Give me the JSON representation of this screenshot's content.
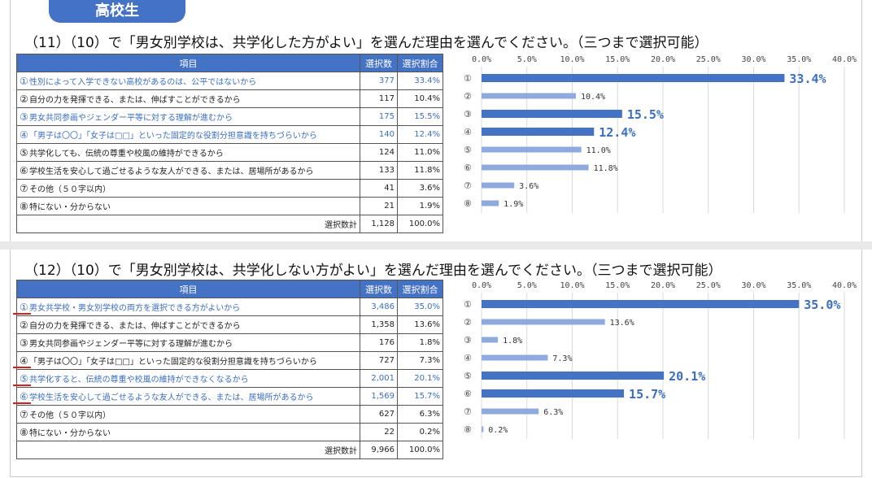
{
  "badge": "高校生",
  "questions": [
    {
      "title": "（11）（10）で「男女別学校は、共学化した方がよい」を選んだ理由を選んでください。（三つまで選択可能）",
      "headers": {
        "item": "項目",
        "count": "選択数",
        "ratio": "選択割合"
      },
      "rows": [
        {
          "no": "①",
          "label": "性別によって入学できない高校があるのは、公平ではないから",
          "count": "377",
          "ratio": "33.4%",
          "highlight": true
        },
        {
          "no": "②",
          "label": "自分の力を発揮できる、または、伸ばすことができるから",
          "count": "117",
          "ratio": "10.4%",
          "highlight": false
        },
        {
          "no": "③",
          "label": "男女共同参画やジェンダー平等に対する理解が進むから",
          "count": "175",
          "ratio": "15.5%",
          "highlight": true
        },
        {
          "no": "④",
          "label": "「男子は〇〇」「女子は□□」といった固定的な役割分担意識を持ちづらいから",
          "count": "140",
          "ratio": "12.4%",
          "highlight": true
        },
        {
          "no": "⑤",
          "label": "共学化しても、伝統の尊重や校風の維持ができるから",
          "count": "124",
          "ratio": "11.0%",
          "highlight": false
        },
        {
          "no": "⑥",
          "label": "学校生活を安心して過ごせるような友人ができる、または、居場所があるから",
          "count": "133",
          "ratio": "11.8%",
          "highlight": false
        },
        {
          "no": "⑦",
          "label": "その他（５０字以内）",
          "count": "41",
          "ratio": "3.6%",
          "highlight": false
        },
        {
          "no": "⑧",
          "label": "特にない・分からない",
          "count": "21",
          "ratio": "1.9%",
          "highlight": false
        }
      ],
      "total": {
        "label": "選択数計",
        "count": "1,128",
        "ratio": "100.0%"
      }
    },
    {
      "title": "（12）（10）で「男女別学校は、共学化しない方がよい」を選んだ理由を選んでください。（三つまで選択可能）",
      "headers": {
        "item": "項目",
        "count": "選択数",
        "ratio": "選択割合"
      },
      "rows": [
        {
          "no": "①",
          "label": "男女共学校・男女別学校の両方を選択できる方がよいから",
          "count": "3,486",
          "ratio": "35.0%",
          "highlight": true
        },
        {
          "no": "②",
          "label": "自分の力を発揮できる、または、伸ばすことができるから",
          "count": "1,358",
          "ratio": "13.6%",
          "highlight": false
        },
        {
          "no": "③",
          "label": "男女共同参画やジェンダー平等に対する理解が進むから",
          "count": "176",
          "ratio": "1.8%",
          "highlight": false
        },
        {
          "no": "④",
          "label": "「男子は〇〇」「女子は□□」といった固定的な役割分担意識を持ちづらいから",
          "count": "727",
          "ratio": "7.3%",
          "highlight": false
        },
        {
          "no": "⑤",
          "label": "共学化すると、伝統の尊重や校風の維持ができなくなるから",
          "count": "2,001",
          "ratio": "20.1%",
          "highlight": true
        },
        {
          "no": "⑥",
          "label": "学校生活を安心して過ごせるような友人ができる、または、居場所があるから",
          "count": "1,569",
          "ratio": "15.7%",
          "highlight": true
        },
        {
          "no": "⑦",
          "label": "その他（５０字以内）",
          "count": "627",
          "ratio": "6.3%",
          "highlight": false
        },
        {
          "no": "⑧",
          "label": "特にない・分からない",
          "count": "22",
          "ratio": "0.2%",
          "highlight": false
        }
      ],
      "total": {
        "label": "選択数計",
        "count": "9,966",
        "ratio": "100.0%"
      }
    }
  ],
  "colors": {
    "accent": "#4472c4",
    "bar_light": "#8faadc",
    "highlight_text": "#3b6ec0",
    "red_mark": "#d42020"
  },
  "chart_data": [
    {
      "type": "bar",
      "orientation": "horizontal",
      "categories": [
        "①",
        "②",
        "③",
        "④",
        "⑤",
        "⑥",
        "⑦",
        "⑧"
      ],
      "values": [
        33.4,
        10.4,
        15.5,
        12.4,
        11.0,
        11.8,
        3.6,
        1.9
      ],
      "value_labels": [
        "33.4%",
        "10.4%",
        "15.5%",
        "12.4%",
        "11.0%",
        "11.8%",
        "3.6%",
        "1.9%"
      ],
      "highlight": [
        true,
        false,
        true,
        true,
        false,
        false,
        false,
        false
      ],
      "xlim": [
        0,
        40
      ],
      "ticks": [
        "0.0%",
        "5.0%",
        "10.0%",
        "15.0%",
        "20.0%",
        "25.0%",
        "30.0%",
        "35.0%",
        "40.0%"
      ],
      "grid": true
    },
    {
      "type": "bar",
      "orientation": "horizontal",
      "categories": [
        "①",
        "②",
        "③",
        "④",
        "⑤",
        "⑥",
        "⑦",
        "⑧"
      ],
      "values": [
        35.0,
        13.6,
        1.8,
        7.3,
        20.1,
        15.7,
        6.3,
        0.2
      ],
      "value_labels": [
        "35.0%",
        "13.6%",
        "1.8%",
        "7.3%",
        "20.1%",
        "15.7%",
        "6.3%",
        "0.2%"
      ],
      "highlight": [
        true,
        false,
        false,
        false,
        true,
        true,
        false,
        false
      ],
      "xlim": [
        0,
        40
      ],
      "ticks": [
        "0.0%",
        "5.0%",
        "10.0%",
        "15.0%",
        "20.0%",
        "25.0%",
        "30.0%",
        "35.0%",
        "40.0%"
      ],
      "grid": true
    }
  ]
}
